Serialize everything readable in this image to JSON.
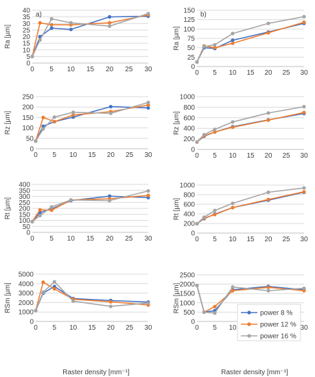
{
  "figure": {
    "x_axis_label": "Raster density [mm⁻¹]",
    "legend": [
      "power 8 %",
      "power 12 %",
      "power 16 %"
    ]
  },
  "colors": {
    "power_8": "#4472C4",
    "power_12": "#ED7D31",
    "power_16": "#A5A5A5",
    "grid": "#d9d9d9",
    "axis": "#bfbfbf"
  },
  "chart_data": [
    {
      "type": "line",
      "panel_label": "a)",
      "ylabel": "Ra [µm]",
      "x": [
        0,
        2,
        5,
        10,
        20,
        30
      ],
      "xlim": [
        0,
        30
      ],
      "xticks": [
        0,
        5,
        10,
        15,
        20,
        25,
        30
      ],
      "ylim": [
        0,
        40
      ],
      "yticks": [
        0,
        5,
        10,
        15,
        20,
        25,
        30,
        35,
        40
      ],
      "series": [
        {
          "name": "power 8 %",
          "values": [
            5,
            20,
            26.5,
            25.5,
            35,
            35.5
          ]
        },
        {
          "name": "power 12 %",
          "values": [
            5,
            30.5,
            29,
            29,
            30.5,
            36.5
          ]
        },
        {
          "name": "power 16 %",
          "values": [
            5,
            17.5,
            33.5,
            30.5,
            28,
            37.5
          ]
        }
      ]
    },
    {
      "type": "line",
      "panel_label": "b)",
      "ylabel": "Ra [µm]",
      "x": [
        0,
        2,
        5,
        10,
        20,
        30
      ],
      "xlim": [
        0,
        30
      ],
      "xticks": [
        0,
        5,
        10,
        15,
        20,
        25,
        30
      ],
      "ylim": [
        0,
        150
      ],
      "yticks": [
        0,
        25,
        50,
        75,
        100,
        125,
        150
      ],
      "series": [
        {
          "name": "power 8 %",
          "values": [
            12,
            50,
            48,
            70,
            92,
            115
          ]
        },
        {
          "name": "power 12 %",
          "values": [
            12,
            55,
            50,
            62,
            90,
            118
          ]
        },
        {
          "name": "power 16 %",
          "values": [
            12,
            53,
            58,
            88,
            115,
            133
          ]
        }
      ]
    },
    {
      "type": "line",
      "ylabel": "Rz [µm]",
      "x": [
        0,
        2,
        5,
        10,
        20,
        30
      ],
      "xlim": [
        0,
        30
      ],
      "xticks": [
        0,
        5,
        10,
        15,
        20,
        25,
        30
      ],
      "ylim": [
        0,
        250
      ],
      "yticks": [
        0,
        50,
        100,
        150,
        200,
        250
      ],
      "series": [
        {
          "name": "power 8 %",
          "values": [
            37,
            108,
            130,
            152,
            202,
            196
          ]
        },
        {
          "name": "power 12 %",
          "values": [
            37,
            150,
            130,
            162,
            178,
            210
          ]
        },
        {
          "name": "power 16 %",
          "values": [
            37,
            95,
            152,
            175,
            170,
            222
          ]
        }
      ]
    },
    {
      "type": "line",
      "ylabel": "Rz [µm]",
      "x": [
        0,
        2,
        5,
        10,
        20,
        30
      ],
      "xlim": [
        0,
        30
      ],
      "xticks": [
        0,
        5,
        10,
        15,
        20,
        25,
        30
      ],
      "ylim": [
        0,
        1000
      ],
      "yticks": [
        0,
        200,
        400,
        600,
        800,
        1000
      ],
      "series": [
        {
          "name": "power 8 %",
          "values": [
            140,
            250,
            330,
            430,
            560,
            680
          ]
        },
        {
          "name": "power 12 %",
          "values": [
            140,
            260,
            330,
            420,
            555,
            700
          ]
        },
        {
          "name": "power 16 %",
          "values": [
            140,
            280,
            380,
            520,
            690,
            810
          ]
        }
      ]
    },
    {
      "type": "line",
      "ylabel": "Rt [µm]",
      "x": [
        0,
        2,
        5,
        10,
        20,
        30
      ],
      "xlim": [
        0,
        30
      ],
      "xticks": [
        0,
        5,
        10,
        15,
        20,
        25,
        30
      ],
      "ylim": [
        0,
        400
      ],
      "yticks": [
        0,
        50,
        100,
        150,
        200,
        250,
        300,
        350,
        400
      ],
      "series": [
        {
          "name": "power 8 %",
          "values": [
            90,
            165,
            195,
            265,
            302,
            290
          ]
        },
        {
          "name": "power 12 %",
          "values": [
            90,
            188,
            185,
            270,
            280,
            308
          ]
        },
        {
          "name": "power 16 %",
          "values": [
            90,
            140,
            212,
            270,
            265,
            345
          ]
        }
      ]
    },
    {
      "type": "line",
      "ylabel": "Rt [µm]",
      "x": [
        0,
        2,
        5,
        10,
        20,
        30
      ],
      "xlim": [
        0,
        30
      ],
      "xticks": [
        0,
        5,
        10,
        15,
        20,
        25,
        30
      ],
      "ylim": [
        0,
        1000
      ],
      "yticks": [
        0,
        200,
        400,
        600,
        800,
        1000
      ],
      "series": [
        {
          "name": "power 8 %",
          "values": [
            195,
            300,
            395,
            530,
            685,
            850
          ]
        },
        {
          "name": "power 12 %",
          "values": [
            195,
            310,
            385,
            530,
            700,
            860
          ]
        },
        {
          "name": "power 16 %",
          "values": [
            195,
            330,
            470,
            620,
            850,
            940
          ]
        }
      ]
    },
    {
      "type": "line",
      "ylabel": "RSm [µm]",
      "x": [
        0,
        2,
        5,
        10,
        20,
        30
      ],
      "xlim": [
        0,
        30
      ],
      "xticks": [
        0,
        5,
        10,
        15,
        20,
        25,
        30
      ],
      "ylim": [
        0,
        5000
      ],
      "yticks": [
        0,
        1000,
        2000,
        3000,
        4000,
        5000
      ],
      "series": [
        {
          "name": "power 8 %",
          "values": [
            1150,
            3000,
            3700,
            2420,
            2220,
            2050
          ]
        },
        {
          "name": "power 12 %",
          "values": [
            1150,
            4150,
            3450,
            2350,
            2080,
            1750
          ]
        },
        {
          "name": "power 16 %",
          "values": [
            1150,
            3100,
            4200,
            2150,
            1600,
            1950
          ]
        }
      ]
    },
    {
      "type": "line",
      "ylabel": "RSm [µm]",
      "x": [
        0,
        2,
        5,
        10,
        20,
        30
      ],
      "xlim": [
        0,
        30
      ],
      "xticks": [
        0,
        5,
        10,
        15,
        20,
        25,
        30
      ],
      "ylim": [
        0,
        2500
      ],
      "yticks": [
        0,
        500,
        1000,
        1500,
        2000,
        2500
      ],
      "legend_position": "bottom-right",
      "series": [
        {
          "name": "power 8 %",
          "values": [
            1930,
            500,
            580,
            1700,
            1880,
            1700
          ]
        },
        {
          "name": "power 12 %",
          "values": [
            1930,
            500,
            800,
            1650,
            1830,
            1650
          ]
        },
        {
          "name": "power 16 %",
          "values": [
            1930,
            500,
            450,
            1850,
            1650,
            1780
          ]
        }
      ]
    }
  ]
}
